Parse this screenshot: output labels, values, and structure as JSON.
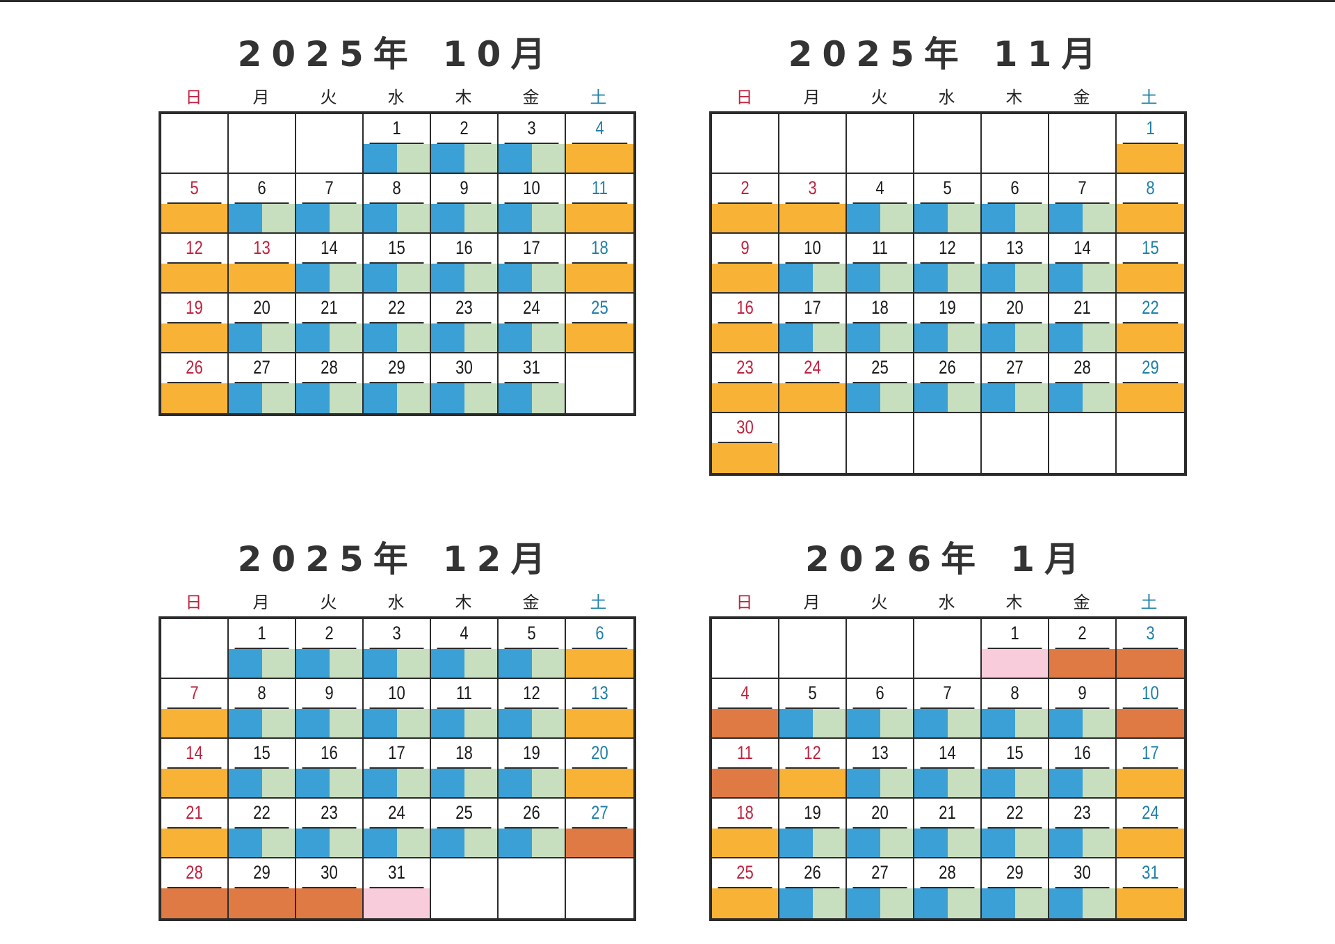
{
  "weekday_labels": [
    "日",
    "月",
    "火",
    "水",
    "木",
    "金",
    "土"
  ],
  "colors": {
    "sunday_text": "#c0223e",
    "saturday_text": "#1f7fa8",
    "weekday_blue": "#3aa0d6",
    "weekday_green": "#c7dfbe",
    "holiday_orange": "#f8b336",
    "closed_darkorange": "#e07a45",
    "special_pink": "#f9ccdb"
  },
  "months": [
    {
      "year_label": "2025年",
      "month_label": "10月",
      "days": [
        "",
        "",
        "",
        "1",
        "2",
        "3",
        "4",
        "5",
        "6",
        "7",
        "8",
        "9",
        "10",
        "11",
        "12",
        "13",
        "14",
        "15",
        "16",
        "17",
        "18",
        "19",
        "20",
        "21",
        "22",
        "23",
        "24",
        "25",
        "26",
        "27",
        "28",
        "29",
        "30",
        "31",
        ""
      ],
      "types": [
        "e",
        "e",
        "e",
        "w",
        "w",
        "w",
        "h",
        "h",
        "w",
        "w",
        "w",
        "w",
        "w",
        "h",
        "h",
        "h",
        "w",
        "w",
        "w",
        "w",
        "h",
        "h",
        "w",
        "w",
        "w",
        "w",
        "w",
        "h",
        "h",
        "w",
        "w",
        "w",
        "w",
        "w",
        "e"
      ],
      "red_days": [
        "13"
      ]
    },
    {
      "year_label": "2025年",
      "month_label": "11月",
      "days": [
        "",
        "",
        "",
        "",
        "",
        "",
        "1",
        "2",
        "3",
        "4",
        "5",
        "6",
        "7",
        "8",
        "9",
        "10",
        "11",
        "12",
        "13",
        "14",
        "15",
        "16",
        "17",
        "18",
        "19",
        "20",
        "21",
        "22",
        "23",
        "24",
        "25",
        "26",
        "27",
        "28",
        "29",
        "30",
        "",
        "",
        "",
        "",
        "",
        ""
      ],
      "types": [
        "e",
        "e",
        "e",
        "e",
        "e",
        "e",
        "h",
        "h",
        "h",
        "w",
        "w",
        "w",
        "w",
        "h",
        "h",
        "w",
        "w",
        "w",
        "w",
        "w",
        "h",
        "h",
        "w",
        "w",
        "w",
        "w",
        "w",
        "h",
        "h",
        "h",
        "w",
        "w",
        "w",
        "w",
        "h",
        "h",
        "e",
        "e",
        "e",
        "e",
        "e",
        "e"
      ],
      "red_days": [
        "3",
        "24"
      ]
    },
    {
      "year_label": "2025年",
      "month_label": "12月",
      "days": [
        "",
        "1",
        "2",
        "3",
        "4",
        "5",
        "6",
        "7",
        "8",
        "9",
        "10",
        "11",
        "12",
        "13",
        "14",
        "15",
        "16",
        "17",
        "18",
        "19",
        "20",
        "21",
        "22",
        "23",
        "24",
        "25",
        "26",
        "27",
        "28",
        "29",
        "30",
        "31",
        "",
        "",
        ""
      ],
      "types": [
        "e",
        "w",
        "w",
        "w",
        "w",
        "w",
        "h",
        "h",
        "w",
        "w",
        "w",
        "w",
        "w",
        "h",
        "h",
        "w",
        "w",
        "w",
        "w",
        "w",
        "h",
        "h",
        "w",
        "w",
        "w",
        "w",
        "w",
        "r",
        "r",
        "r",
        "r",
        "p",
        "e",
        "e",
        "e"
      ],
      "red_days": []
    },
    {
      "year_label": "2026年",
      "month_label": "1月",
      "days": [
        "",
        "",
        "",
        "",
        "1",
        "2",
        "3",
        "4",
        "5",
        "6",
        "7",
        "8",
        "9",
        "10",
        "11",
        "12",
        "13",
        "14",
        "15",
        "16",
        "17",
        "18",
        "19",
        "20",
        "21",
        "22",
        "23",
        "24",
        "25",
        "26",
        "27",
        "28",
        "29",
        "30",
        "31"
      ],
      "types": [
        "e",
        "e",
        "e",
        "e",
        "p",
        "r",
        "r",
        "r",
        "w",
        "w",
        "w",
        "w",
        "w",
        "r",
        "r",
        "h",
        "w",
        "w",
        "w",
        "w",
        "h",
        "h",
        "w",
        "w",
        "w",
        "w",
        "w",
        "h",
        "h",
        "w",
        "w",
        "w",
        "w",
        "w",
        "h"
      ],
      "red_days": [
        "12"
      ]
    }
  ]
}
